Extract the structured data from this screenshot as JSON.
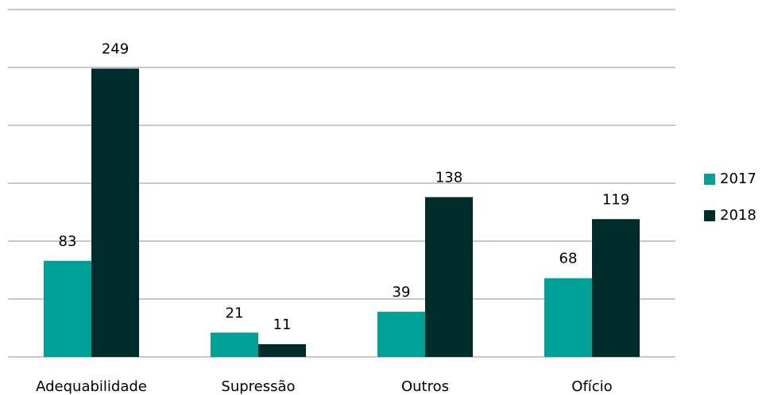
{
  "chart_data": {
    "type": "bar",
    "categories": [
      "Adequabilidade",
      "Supressão",
      "Outros",
      "Ofício"
    ],
    "series": [
      {
        "name": "2017",
        "color": "#00a096",
        "values": [
          83,
          21,
          39,
          68
        ]
      },
      {
        "name": "2018",
        "color": "#002b2b",
        "values": [
          249,
          11,
          138,
          119
        ]
      }
    ],
    "ylim": [
      0,
      300
    ],
    "yticks": [
      0,
      50,
      100,
      150,
      200,
      250,
      300
    ],
    "grid": true,
    "legend": "right"
  }
}
